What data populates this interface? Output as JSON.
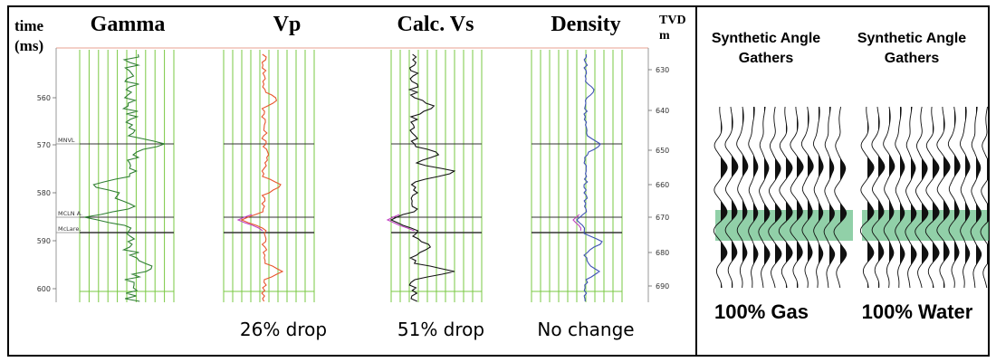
{
  "left_panel": {
    "time_label_line1": "time",
    "time_label_line2": "(ms)",
    "tvd_label_line1": "TVD",
    "tvd_label_line2": "m",
    "track_titles": [
      "Gamma",
      "Vp",
      "Calc. Vs",
      "Density"
    ],
    "time_ticks": [
      "560",
      "570",
      "580",
      "590",
      "600"
    ],
    "tvd_ticks": [
      "630",
      "640",
      "650",
      "660",
      "670",
      "680",
      "690"
    ],
    "markers": [
      "MNVL",
      "MCLN A.",
      "McLare."
    ],
    "captions": [
      "26% drop",
      "51% drop",
      "No change"
    ],
    "colors": {
      "grid": "#7ac943",
      "gamma": "#2e7d32",
      "vp": "#e8552d",
      "vs": "#111111",
      "density": "#3f51b5",
      "highlight": "#c040c0",
      "marker_line": "#333333"
    }
  },
  "right_panel": {
    "gather_titles": [
      "Synthetic Angle Gathers",
      "Synthetic Angle Gathers"
    ],
    "fluid_labels": [
      "100% Gas",
      "100% Water"
    ],
    "band_color": "#6cc08b"
  }
}
